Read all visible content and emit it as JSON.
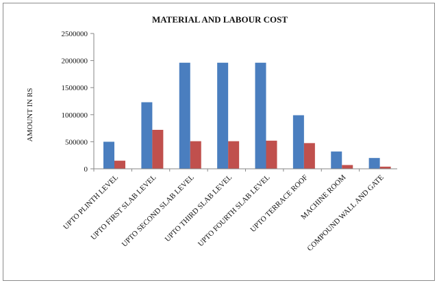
{
  "chart_data": {
    "type": "bar",
    "title": "MATERIAL AND LABOUR COST",
    "ylabel": "AMOUNT IN RS",
    "xlabel": "",
    "ylim": [
      0,
      2500000
    ],
    "yticks": [
      0,
      500000,
      1000000,
      1500000,
      2000000,
      2500000
    ],
    "ytick_labels": [
      "0",
      "500000",
      "1000000",
      "1500000",
      "2000000",
      "2500000"
    ],
    "grid": false,
    "legend": "none",
    "categories": [
      "UPTO PLINTH LEVEL",
      "UPTO FIRST SLAB LEVEL",
      "UPTO SECOND SLAB LEVEL",
      "UPTO THIRD SLAB LEVEL",
      "UPTO FOURTH SLAB LEVEL",
      "UPTO TERRACE ROOF",
      "MACHINE ROOM",
      "COMPOUND WALL AND GATE"
    ],
    "series": [
      {
        "color": "#4a7ebf",
        "values": [
          500000,
          1230000,
          1960000,
          1960000,
          1960000,
          990000,
          320000,
          200000
        ]
      },
      {
        "color": "#c0504d",
        "values": [
          150000,
          720000,
          510000,
          510000,
          520000,
          475000,
          70000,
          40000
        ]
      }
    ]
  }
}
